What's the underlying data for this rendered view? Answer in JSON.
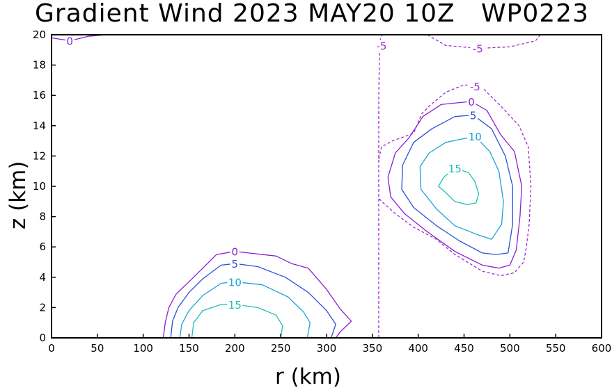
{
  "chart_data": {
    "type": "contour",
    "title": "Gradient Wind 2023 MAY20 10Z   WP0223",
    "xlabel": "r (km)",
    "ylabel": "z (km)",
    "xlim": [
      0,
      600
    ],
    "ylim": [
      0,
      20
    ],
    "xticks": [
      0,
      50,
      100,
      150,
      200,
      250,
      300,
      350,
      400,
      450,
      500,
      550,
      600
    ],
    "yticks": [
      0,
      2,
      4,
      6,
      8,
      10,
      12,
      14,
      16,
      18,
      20
    ],
    "grid": false,
    "contour_levels": [
      -5,
      0,
      5,
      10,
      15
    ],
    "level_colors": {
      "-5": "#9a2bd1",
      "0": "#8a1fd0",
      "5": "#2a52d6",
      "10": "#18a2d8",
      "15": "#1fbfb4"
    },
    "contours": [
      {
        "level": 0,
        "label": "0",
        "dashed": false,
        "label_at": [
          20,
          19.6
        ],
        "points": [
          [
            0,
            19.8
          ],
          [
            20,
            19.6
          ],
          [
            40,
            19.9
          ],
          [
            60,
            20
          ]
        ]
      },
      {
        "level": 0,
        "label": "0",
        "dashed": false,
        "label_at": [
          200,
          5.7
        ],
        "points": [
          [
            122,
            0
          ],
          [
            124,
            1
          ],
          [
            128,
            2
          ],
          [
            136,
            2.9
          ],
          [
            150,
            3.7
          ],
          [
            165,
            4.6
          ],
          [
            180,
            5.5
          ],
          [
            200,
            5.7
          ],
          [
            215,
            5.6
          ],
          [
            245,
            5.4
          ],
          [
            262,
            4.9
          ],
          [
            280,
            4.6
          ],
          [
            300,
            3.2
          ],
          [
            315,
            1.9
          ],
          [
            327,
            1.1
          ],
          [
            315,
            0.4
          ],
          [
            310,
            0
          ]
        ]
      },
      {
        "level": 5,
        "label": "5",
        "dashed": false,
        "label_at": [
          200,
          4.9
        ],
        "points": [
          [
            130,
            0
          ],
          [
            132,
            1.1
          ],
          [
            138,
            2
          ],
          [
            150,
            3
          ],
          [
            165,
            3.9
          ],
          [
            185,
            4.8
          ],
          [
            200,
            4.9
          ],
          [
            225,
            4.7
          ],
          [
            255,
            4
          ],
          [
            280,
            3
          ],
          [
            300,
            1.8
          ],
          [
            310,
            0.9
          ],
          [
            305,
            0
          ]
        ]
      },
      {
        "level": 10,
        "label": "10",
        "dashed": false,
        "label_at": [
          200,
          3.7
        ],
        "points": [
          [
            140,
            0
          ],
          [
            142,
            0.9
          ],
          [
            150,
            1.8
          ],
          [
            165,
            2.8
          ],
          [
            185,
            3.6
          ],
          [
            200,
            3.7
          ],
          [
            230,
            3.5
          ],
          [
            258,
            2.7
          ],
          [
            275,
            1.7
          ],
          [
            282,
            1
          ],
          [
            279,
            0
          ]
        ]
      },
      {
        "level": 15,
        "label": "15",
        "dashed": false,
        "label_at": [
          200,
          2.2
        ],
        "points": [
          [
            153,
            0
          ],
          [
            155,
            1
          ],
          [
            165,
            1.8
          ],
          [
            185,
            2.2
          ],
          [
            200,
            2.2
          ],
          [
            225,
            2
          ],
          [
            245,
            1.5
          ],
          [
            252,
            0.8
          ],
          [
            250,
            0
          ]
        ]
      },
      {
        "level": -5,
        "label": "-5",
        "dashed": true,
        "label_at": [
          360,
          19.3
        ],
        "points": [
          [
            357,
            0
          ],
          [
            357,
            4
          ],
          [
            357,
            8
          ],
          [
            357,
            12
          ],
          [
            357,
            16
          ],
          [
            358,
            19.5
          ],
          [
            360,
            20
          ]
        ]
      },
      {
        "level": -5,
        "label": "-5",
        "dashed": true,
        "label_at": [
          465,
          19.1
        ],
        "points": [
          [
            410,
            20
          ],
          [
            430,
            19.3
          ],
          [
            465,
            19.1
          ],
          [
            500,
            19.2
          ],
          [
            528,
            19.6
          ],
          [
            533,
            20
          ]
        ]
      },
      {
        "level": -5,
        "label": "-5",
        "dashed": true,
        "label_at": [
          462,
          16.6
        ],
        "points": [
          [
            357,
            11.8
          ],
          [
            360,
            12.6
          ],
          [
            372,
            13
          ],
          [
            395,
            13.5
          ],
          [
            404,
            14.8
          ],
          [
            412,
            15.3
          ],
          [
            430,
            16.2
          ],
          [
            450,
            16.7
          ],
          [
            470,
            16.5
          ],
          [
            490,
            15.3
          ],
          [
            510,
            14
          ],
          [
            520,
            12.6
          ],
          [
            523,
            10
          ],
          [
            521,
            7.5
          ],
          [
            518,
            6
          ],
          [
            515,
            5
          ],
          [
            505,
            4.3
          ],
          [
            490,
            4.1
          ],
          [
            470,
            4.4
          ],
          [
            440,
            5.5
          ],
          [
            420,
            6.5
          ],
          [
            395,
            7.3
          ],
          [
            375,
            8.2
          ],
          [
            362,
            8.9
          ],
          [
            357,
            9.2
          ]
        ]
      },
      {
        "level": 0,
        "label": "0",
        "dashed": false,
        "label_at": [
          458,
          15.6
        ],
        "points": [
          [
            458,
            15.6
          ],
          [
            475,
            15
          ],
          [
            490,
            13.4
          ],
          [
            505,
            12.3
          ],
          [
            513,
            10
          ],
          [
            511,
            8
          ],
          [
            507,
            5.8
          ],
          [
            500,
            4.8
          ],
          [
            488,
            4.6
          ],
          [
            470,
            4.8
          ],
          [
            440,
            5.7
          ],
          [
            410,
            7
          ],
          [
            385,
            8.2
          ],
          [
            370,
            9.3
          ],
          [
            367,
            10.6
          ],
          [
            375,
            12.2
          ],
          [
            390,
            13.2
          ],
          [
            405,
            14.6
          ],
          [
            425,
            15.4
          ],
          [
            458,
            15.6
          ]
        ]
      },
      {
        "level": 5,
        "label": "5",
        "dashed": false,
        "label_at": [
          460,
          14.7
        ],
        "points": [
          [
            460,
            14.7
          ],
          [
            480,
            13.8
          ],
          [
            495,
            12
          ],
          [
            503,
            10
          ],
          [
            503,
            7.5
          ],
          [
            498,
            5.6
          ],
          [
            485,
            5.5
          ],
          [
            470,
            5.6
          ],
          [
            445,
            6.4
          ],
          [
            420,
            7.4
          ],
          [
            395,
            8.6
          ],
          [
            382,
            9.8
          ],
          [
            383,
            11.4
          ],
          [
            395,
            12.9
          ],
          [
            415,
            13.8
          ],
          [
            440,
            14.6
          ],
          [
            460,
            14.7
          ]
        ]
      },
      {
        "level": 10,
        "label": "10",
        "dashed": false,
        "label_at": [
          462,
          13.3
        ],
        "points": [
          [
            462,
            13.3
          ],
          [
            478,
            12.3
          ],
          [
            488,
            11
          ],
          [
            493,
            9
          ],
          [
            491,
            7.5
          ],
          [
            480,
            6.5
          ],
          [
            465,
            6.8
          ],
          [
            440,
            7.4
          ],
          [
            420,
            8.5
          ],
          [
            403,
            9.8
          ],
          [
            402,
            11.3
          ],
          [
            412,
            12.2
          ],
          [
            430,
            12.9
          ],
          [
            462,
            13.3
          ]
        ]
      },
      {
        "level": 15,
        "label": "15",
        "dashed": false,
        "label_at": [
          440,
          11.2
        ],
        "points": [
          [
            440,
            11.2
          ],
          [
            455,
            10.9
          ],
          [
            462,
            10.3
          ],
          [
            466,
            9.5
          ],
          [
            463,
            8.9
          ],
          [
            453,
            8.8
          ],
          [
            440,
            9
          ],
          [
            428,
            9.7
          ],
          [
            422,
            10
          ],
          [
            428,
            10.6
          ],
          [
            440,
            11.2
          ]
        ]
      }
    ]
  }
}
